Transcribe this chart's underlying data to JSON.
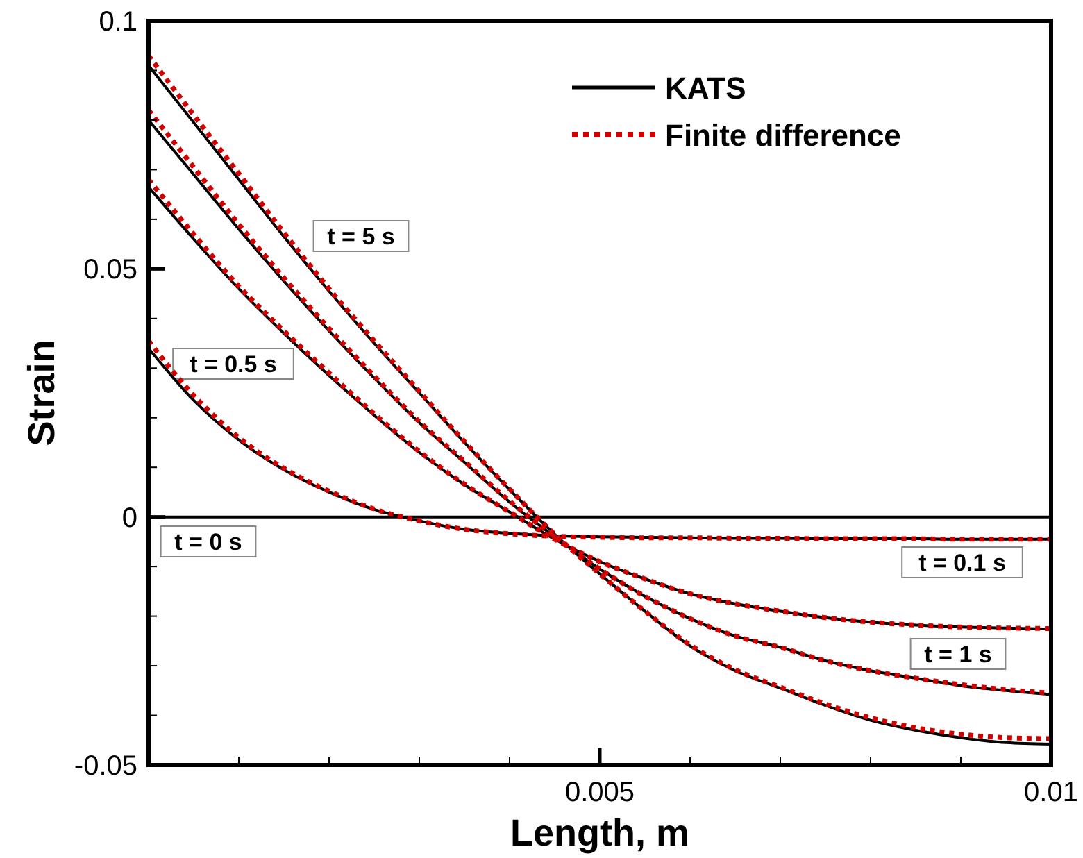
{
  "chart_data": {
    "type": "line",
    "xlabel": "Length, m",
    "ylabel": "Strain",
    "x": [
      0,
      0.0005,
      0.001,
      0.0015,
      0.002,
      0.0025,
      0.003,
      0.0035,
      0.004,
      0.0045,
      0.005,
      0.0055,
      0.006,
      0.0065,
      0.007,
      0.0075,
      0.008,
      0.0085,
      0.009,
      0.0095,
      0.01
    ],
    "xlim": [
      0,
      0.01
    ],
    "ylim": [
      -0.05,
      0.1
    ],
    "xticks": [
      {
        "value": 0,
        "label": null
      },
      {
        "value": 0.001,
        "label": null
      },
      {
        "value": 0.002,
        "label": null
      },
      {
        "value": 0.003,
        "label": null
      },
      {
        "value": 0.004,
        "label": null
      },
      0.005,
      {
        "value": 0.006,
        "label": null
      },
      {
        "value": 0.007,
        "label": null
      },
      {
        "value": 0.008,
        "label": null
      },
      {
        "value": 0.009,
        "label": null
      },
      0.01
    ],
    "yticks": [
      -0.05,
      {
        "value": -0.04,
        "label": null
      },
      {
        "value": -0.03,
        "label": null
      },
      {
        "value": -0.02,
        "label": null
      },
      {
        "value": -0.01,
        "label": null
      },
      0,
      {
        "value": 0.01,
        "label": null
      },
      {
        "value": 0.02,
        "label": null
      },
      {
        "value": 0.03,
        "label": null
      },
      {
        "value": 0.04,
        "label": null
      },
      0.05,
      {
        "value": 0.06,
        "label": null
      },
      {
        "value": 0.07,
        "label": null
      },
      {
        "value": 0.08,
        "label": null
      },
      {
        "value": 0.09,
        "label": null
      },
      0.1
    ],
    "grid": false,
    "legend": "top right",
    "marker": "none",
    "series": [
      {
        "name": "KATS",
        "color": "#000000",
        "line_style": "solid",
        "values": [
          0,
          0,
          0,
          0,
          0,
          0,
          0,
          0,
          0,
          0,
          0,
          0,
          0,
          0,
          0,
          0,
          0,
          0,
          0,
          0,
          0
        ]
      },
      {
        "color": "#000000",
        "line_style": "solid",
        "values": [
          0.034,
          0.0235,
          0.0155,
          0.0095,
          0.005,
          0.0015,
          -0.0008,
          -0.0025,
          -0.0033,
          -0.0038,
          -0.004,
          -0.0041,
          -0.0042,
          -0.0043,
          -0.0043,
          -0.0044,
          -0.0044,
          -0.0044,
          -0.0045,
          -0.0045,
          -0.0045
        ]
      },
      {
        "color": "#000000",
        "line_style": "solid",
        "values": [
          0.0665,
          0.056,
          0.046,
          0.037,
          0.0285,
          0.0205,
          0.013,
          0.0065,
          0.001,
          -0.0045,
          -0.009,
          -0.0125,
          -0.0155,
          -0.0175,
          -0.019,
          -0.0203,
          -0.0212,
          -0.0218,
          -0.0222,
          -0.0224,
          -0.0226
        ]
      },
      {
        "color": "#000000",
        "line_style": "solid",
        "values": [
          0.08,
          0.069,
          0.058,
          0.0475,
          0.0375,
          0.028,
          0.019,
          0.011,
          0.003,
          -0.004,
          -0.0105,
          -0.016,
          -0.0205,
          -0.024,
          -0.0263,
          -0.029,
          -0.031,
          -0.0325,
          -0.034,
          -0.035,
          -0.0358
        ]
      },
      {
        "color": "#000000",
        "line_style": "solid",
        "values": [
          0.091,
          0.0795,
          0.068,
          0.0565,
          0.0455,
          0.035,
          0.025,
          0.015,
          0.0055,
          -0.0035,
          -0.0115,
          -0.019,
          -0.026,
          -0.031,
          -0.0345,
          -0.038,
          -0.041,
          -0.043,
          -0.0445,
          -0.0455,
          -0.0458
        ]
      },
      {
        "name": "Finite difference",
        "color": "#d40000",
        "line_style": "dotted",
        "values": [
          0.0355,
          0.0245,
          0.016,
          0.0098,
          0.0052,
          0.0016,
          -0.0008,
          -0.0025,
          -0.0034,
          -0.0039,
          -0.0041,
          -0.0042,
          -0.0042,
          -0.0043,
          -0.0043,
          -0.0044,
          -0.0044,
          -0.0044,
          -0.0045,
          -0.0045,
          -0.0045
        ]
      },
      {
        "color": "#d40000",
        "line_style": "dotted",
        "values": [
          0.068,
          0.057,
          0.0465,
          0.0375,
          0.029,
          0.0208,
          0.0132,
          0.0066,
          0.001,
          -0.0045,
          -0.009,
          -0.0125,
          -0.0155,
          -0.0175,
          -0.019,
          -0.0203,
          -0.0212,
          -0.0218,
          -0.0222,
          -0.0224,
          -0.0225
        ]
      },
      {
        "color": "#d40000",
        "line_style": "dotted",
        "values": [
          0.082,
          0.0705,
          0.059,
          0.0482,
          0.038,
          0.0284,
          0.0192,
          0.0112,
          0.0032,
          -0.004,
          -0.0105,
          -0.016,
          -0.0205,
          -0.024,
          -0.0263,
          -0.029,
          -0.031,
          -0.0325,
          -0.0338,
          -0.0348,
          -0.0355
        ]
      },
      {
        "color": "#d40000",
        "line_style": "dotted",
        "values": [
          0.093,
          0.081,
          0.0692,
          0.0573,
          0.046,
          0.0355,
          0.0253,
          0.0152,
          0.0056,
          -0.0035,
          -0.0115,
          -0.019,
          -0.0258,
          -0.0308,
          -0.0343,
          -0.0377,
          -0.0405,
          -0.0425,
          -0.0438,
          -0.0445,
          -0.0447
        ]
      }
    ],
    "annotations": [
      "t = 5 s",
      "t = 0.5 s",
      "t = 0 s",
      "t = 0.1 s",
      "t = 1 s"
    ]
  }
}
